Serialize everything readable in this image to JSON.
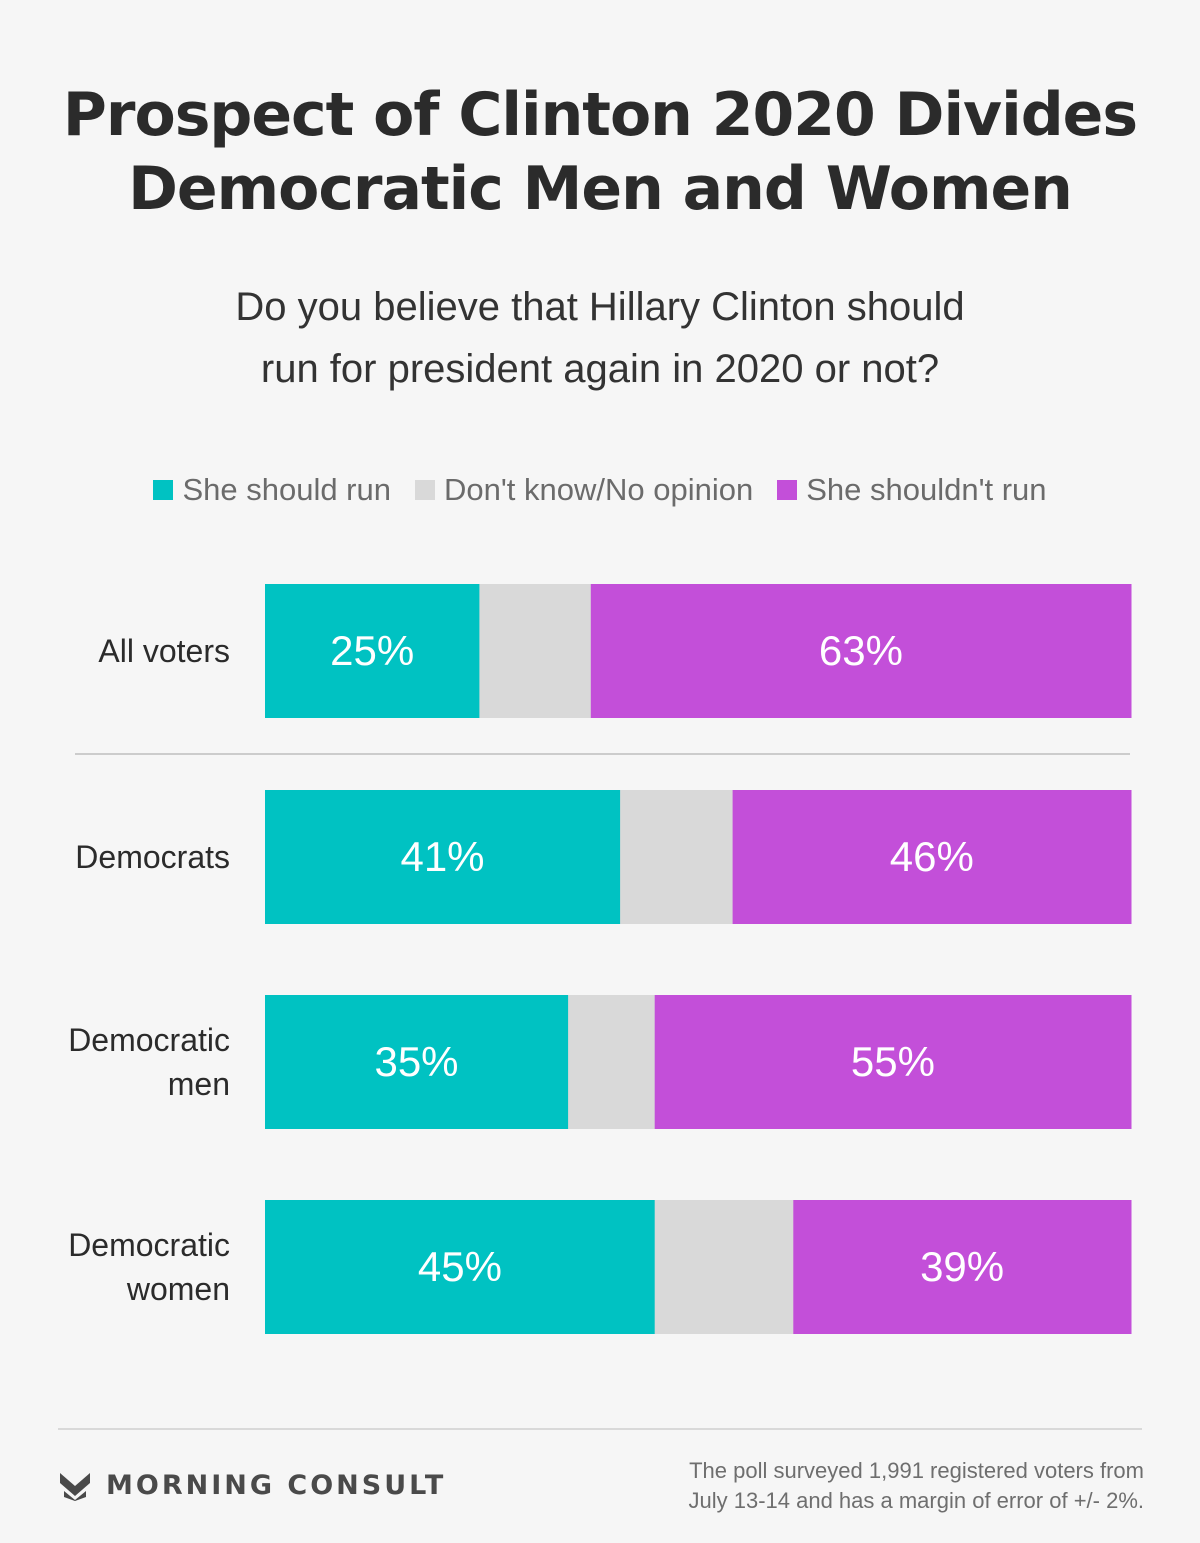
{
  "header": {
    "title_line1": "Prospect of Clinton 2020 Divides",
    "title_line2": "Democratic Men and Women",
    "subtitle_line1": "Do you believe that Hillary Clinton should",
    "subtitle_line2": "run for president again in 2020 or not?"
  },
  "colors": {
    "should_run": "#00c2c2",
    "dont_know": "#d9d9d9",
    "shouldnt_run": "#c34fd9",
    "value_label": "#ffffff",
    "category_label": "#2b2b2b",
    "separator": "#cccccc"
  },
  "chart_data": {
    "type": "bar",
    "orientation": "horizontal",
    "stacked": true,
    "title": "Prospect of Clinton 2020 Divides Democratic Men and Women",
    "subtitle": "Do you believe that Hillary Clinton should run for president again in 2020 or not?",
    "categories": [
      "All voters",
      "Democrats",
      "Democratic men",
      "Democratic women"
    ],
    "category_lines": [
      [
        "All voters"
      ],
      [
        "Democrats"
      ],
      [
        "Democratic",
        "men"
      ],
      [
        "Democratic",
        "women"
      ]
    ],
    "series": [
      {
        "name": "She should run",
        "values": [
          25,
          41,
          35,
          45
        ],
        "labels": [
          "25%",
          "41%",
          "35%",
          "45%"
        ]
      },
      {
        "name": "Don't know/No opinion",
        "values": [
          13,
          13,
          10,
          16
        ],
        "labels": [
          "",
          "",
          "",
          ""
        ]
      },
      {
        "name": "She shouldn't run",
        "values": [
          63,
          46,
          55,
          39
        ],
        "labels": [
          "63%",
          "46%",
          "55%",
          "39%"
        ]
      }
    ],
    "xlim": [
      0,
      100
    ],
    "legend_position": "top",
    "grid": false,
    "separator_after_category": 0
  },
  "footer": {
    "brand": "MORNING CONSULT",
    "brand_icon": "morning-consult-logo-icon",
    "note_line1": "The poll surveyed 1,991 registered voters from",
    "note_line2": "July 13-14 and has a margin of error of +/- 2%."
  }
}
